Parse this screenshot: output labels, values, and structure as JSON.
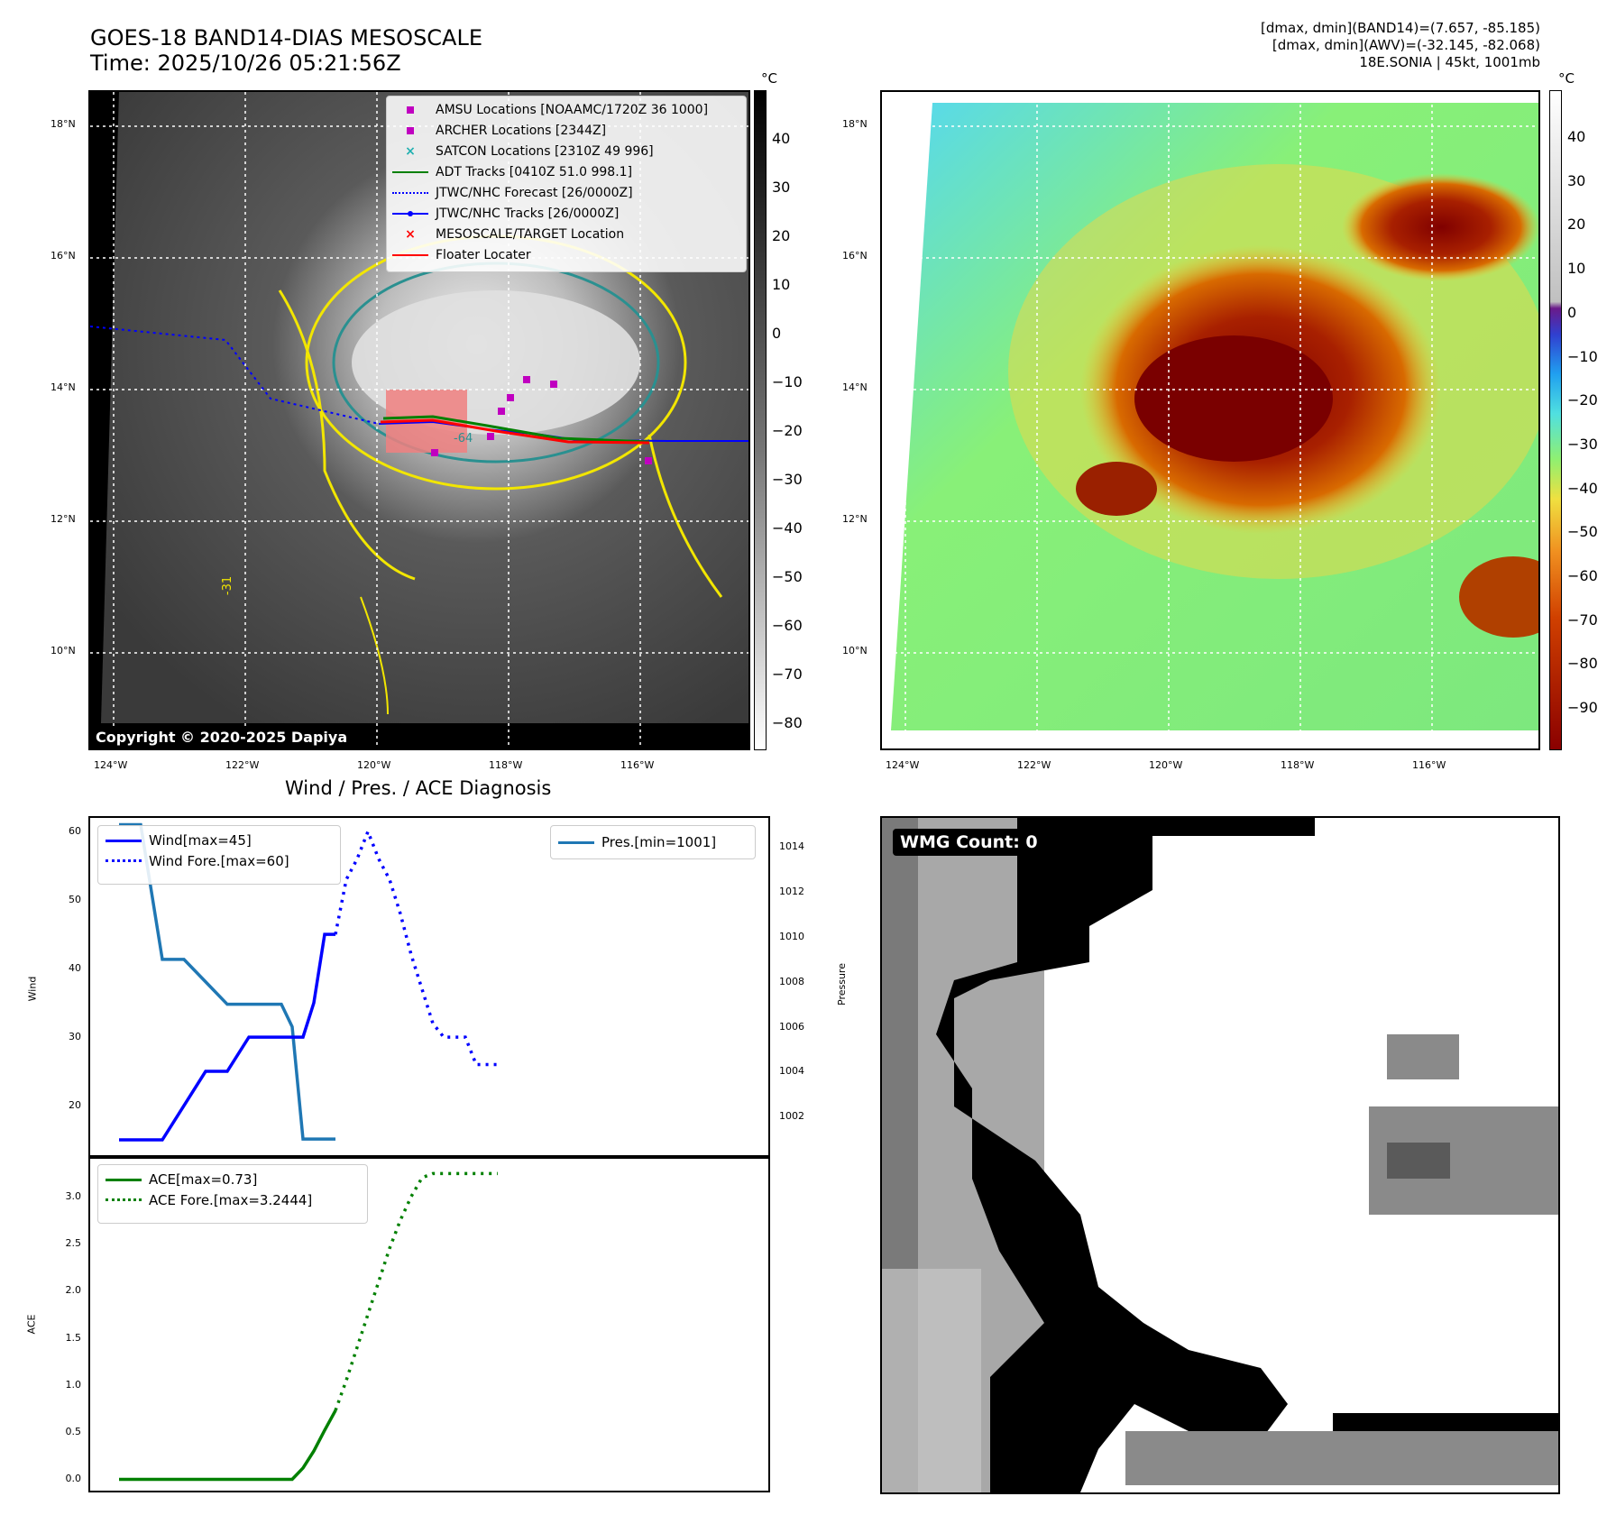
{
  "header": {
    "title_line1": "GOES-18 BAND14-DIAS MESOSCALE",
    "title_line2": "Time: 2025/10/26 05:21:56Z",
    "info_line1": "[dmax, dmin](BAND14)=(7.657, -85.185)",
    "info_line2": "[dmax, dmin](AWV)=(-32.145, -82.068)",
    "info_line3": "18E.SONIA | 45kt, 1001mb"
  },
  "colors": {
    "wind": "#0000ff",
    "pressure": "#1f77b4",
    "ace": "#008000",
    "track_red": "#ff0000",
    "adt_green": "#008000",
    "amsu_magenta": "#c000c0",
    "satcon_cyan": "#20b0b0",
    "contour_yellow": "#f2e600",
    "contour_teal": "#2a9090"
  },
  "map_axes": {
    "lat_labels": [
      "18°N",
      "16°N",
      "14°N",
      "12°N",
      "10°N"
    ],
    "lon_labels": [
      "124°W",
      "122°W",
      "120°W",
      "118°W",
      "116°W"
    ]
  },
  "ir_colorbar": {
    "unit": "°C",
    "ticks": [
      "40",
      "30",
      "20",
      "10",
      "0",
      "−10",
      "−20",
      "−30",
      "−40",
      "−50",
      "−60",
      "−70",
      "−80"
    ]
  },
  "enh_colorbar": {
    "unit": "°C",
    "ticks": [
      "40",
      "30",
      "20",
      "10",
      "0",
      "−10",
      "−20",
      "−30",
      "−40",
      "−50",
      "−60",
      "−70",
      "−80",
      "−90"
    ]
  },
  "map_legend": [
    {
      "label": "AMSU Locations [NOAAMC/1720Z 36 1000]",
      "marker": "square",
      "color": "#c000c0"
    },
    {
      "label": "ARCHER Locations [2344Z]",
      "marker": "square",
      "color": "#c000c0"
    },
    {
      "label": "SATCON Locations [2310Z 49 996]",
      "marker": "x",
      "color": "#20b0b0"
    },
    {
      "label": "ADT Tracks [0410Z 51.0 998.1]",
      "marker": "line",
      "color": "#008000"
    },
    {
      "label": "JTWC/NHC Forecast [26/0000Z]",
      "marker": "dotted",
      "color": "#0000ff"
    },
    {
      "label": "JTWC/NHC Tracks [26/0000Z]",
      "marker": "linedot",
      "color": "#0000ff"
    },
    {
      "label": "MESOSCALE/TARGET Location",
      "marker": "x",
      "color": "#ff0000"
    },
    {
      "label": "Floater Locater",
      "marker": "line",
      "color": "#ff0000"
    }
  ],
  "copyright": "Copyright © 2020-2025 Dapiya",
  "contour_labels": [
    "-64",
    "-31"
  ],
  "wmg": {
    "label": "WMG Count: 0"
  },
  "chart_data": [
    {
      "type": "line",
      "title": "Wind / Pres. / ACE Diagnosis",
      "ylabel": "Wind",
      "ylabel2": "Pressure",
      "ylim": [
        12.5,
        62
      ],
      "ylim2": [
        1000.2,
        1015.3
      ],
      "x": [
        0,
        1,
        2,
        3,
        4,
        5,
        6,
        7,
        8,
        9,
        10,
        11,
        12,
        13,
        14,
        15
      ],
      "yticks": [
        "60",
        "50",
        "40",
        "30",
        "20"
      ],
      "yticks2": [
        "1014",
        "1012",
        "1010",
        "1008",
        "1006",
        "1004",
        "1002"
      ],
      "series": [
        {
          "name": "Wind",
          "legend": "Wind[max=45]",
          "style": "solid",
          "x": [
            0,
            1,
            2,
            3,
            4,
            5,
            6,
            7,
            7.5,
            8,
            8.5,
            9,
            9.5,
            10
          ],
          "values": [
            15,
            15,
            15,
            20,
            25,
            25,
            30,
            30,
            30,
            30,
            30,
            35,
            45,
            45
          ]
        },
        {
          "name": "Wind Fore.",
          "legend": "Wind Fore.[max=60]",
          "style": "dotted",
          "x": [
            10,
            10.5,
            11,
            11.5,
            12,
            12.5,
            13,
            13.5,
            14,
            14.5,
            15,
            15.5,
            16,
            16.5,
            17,
            17.5
          ],
          "values": [
            45,
            53,
            56,
            60,
            56,
            53,
            48,
            42,
            37,
            32,
            30,
            30,
            30,
            26,
            26,
            26
          ]
        },
        {
          "name": "Pres.",
          "legend": "Pres.[min=1001]",
          "style": "solid",
          "axis": "right",
          "x": [
            0,
            1,
            2,
            3,
            4,
            5,
            6,
            7,
            7.5,
            8,
            8.5,
            9,
            9.5,
            10
          ],
          "values": [
            1015,
            1015,
            1009,
            1009,
            1008,
            1007,
            1007,
            1007,
            1007,
            1006,
            1001,
            1001,
            1001,
            1001
          ]
        }
      ]
    },
    {
      "type": "line",
      "ylabel": "ACE",
      "ylim": [
        -0.12,
        3.42
      ],
      "yticks": [
        "3.0",
        "2.5",
        "2.0",
        "1.5",
        "1.0",
        "0.5",
        "0.0"
      ],
      "series": [
        {
          "name": "ACE",
          "legend": "ACE[max=0.73]",
          "style": "solid",
          "x": [
            0,
            1,
            2,
            3,
            4,
            5,
            6,
            7,
            7.5,
            8,
            8.5,
            9,
            9.5,
            10
          ],
          "values": [
            0,
            0,
            0,
            0,
            0,
            0,
            0,
            0,
            0,
            0,
            0.12,
            0.3,
            0.52,
            0.73
          ]
        },
        {
          "name": "ACE Fore.",
          "legend": "ACE Fore.[max=3.2444]",
          "style": "dotted",
          "x": [
            10,
            10.5,
            11,
            11.5,
            12,
            12.5,
            13,
            13.5,
            14,
            14.5,
            15,
            15.5,
            16,
            16.5,
            17,
            17.5
          ],
          "values": [
            0.73,
            1.05,
            1.4,
            1.75,
            2.1,
            2.45,
            2.75,
            3.0,
            3.2,
            3.2444,
            3.2444,
            3.2444,
            3.2444,
            3.2444,
            3.2444,
            3.2444
          ]
        }
      ]
    }
  ]
}
